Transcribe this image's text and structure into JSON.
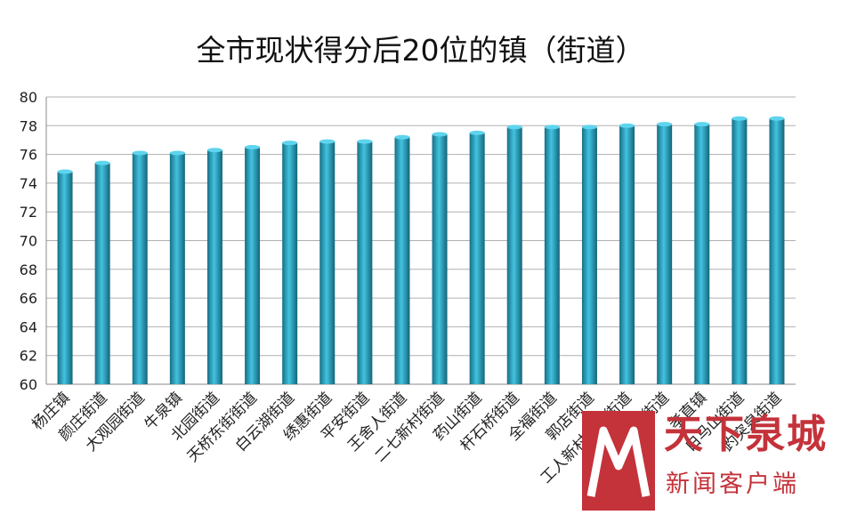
{
  "chart_data": {
    "type": "bar",
    "title": "全市现状得分后20位的镇（街道）",
    "categories": [
      "杨庄镇",
      "颜庄街道",
      "大观园街道",
      "牛泉镇",
      "北园街道",
      "天桥东街街道",
      "白云湖街道",
      "绣惠街道",
      "平安街道",
      "王舍人街道",
      "二七新村街道",
      "药山街道",
      "杆石桥街道",
      "全福街道",
      "郭店街道",
      "工人新村北村街道",
      "港沟街道",
      "孝直镇",
      "白马山街道",
      "趵突泉街道"
    ],
    "values": [
      74.8,
      75.4,
      76.1,
      76.1,
      76.3,
      76.5,
      76.8,
      76.9,
      76.9,
      77.2,
      77.4,
      77.5,
      77.9,
      77.9,
      77.9,
      78.0,
      78.1,
      78.1,
      78.5,
      78.5
    ],
    "ylim": [
      60,
      80
    ],
    "yticks": [
      60,
      62,
      64,
      66,
      68,
      70,
      72,
      74,
      76,
      78,
      80
    ],
    "grid": true,
    "legend": "none",
    "bar_color": "#2aa7c4"
  },
  "watermark": {
    "brand": "天下泉城",
    "sub": "新闻客户端",
    "color": "#c4323a"
  }
}
